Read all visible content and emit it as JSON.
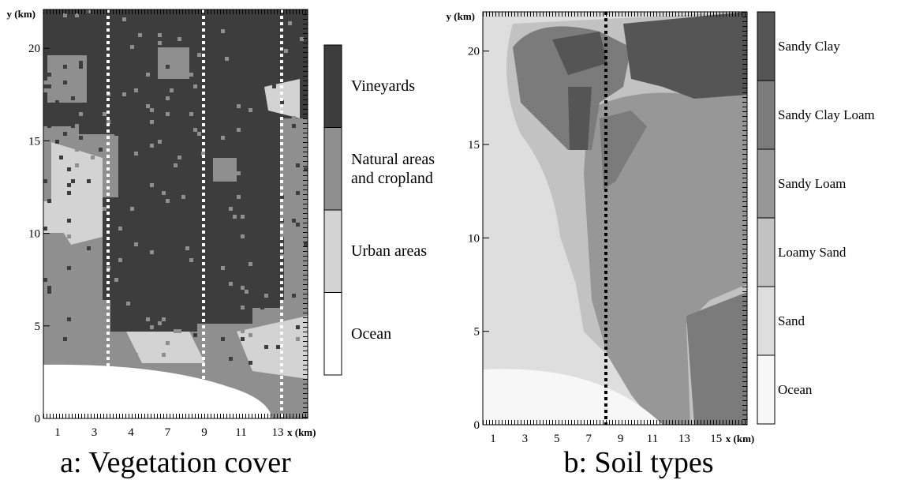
{
  "panels": [
    {
      "caption": "a: Vegetation cover",
      "y_axis_label": "y (km)",
      "x_axis_label": "x (km)",
      "ylim": [
        0,
        22.1
      ],
      "yticks": [
        0,
        5,
        10,
        15,
        20
      ],
      "xtick_labels": [
        "1",
        "3",
        "4",
        "7",
        "9",
        "11",
        "13"
      ],
      "transect_color": "#ffffff",
      "legend": [
        {
          "label": "Vineyards",
          "color": "#3d3d3d"
        },
        {
          "label": "Natural areas and cropland",
          "color": "#8f8f8f"
        },
        {
          "label": "Urban areas",
          "color": "#d3d3d3"
        },
        {
          "label": "Ocean",
          "color": "#ffffff"
        }
      ]
    },
    {
      "caption": "b: Soil types",
      "y_axis_label": "y (km)",
      "x_axis_label": "x (km)",
      "ylim": [
        0,
        22.1
      ],
      "yticks": [
        0,
        5,
        10,
        15,
        20
      ],
      "xtick_labels": [
        "1",
        "3",
        "5",
        "7",
        "9",
        "11",
        "13",
        "15"
      ],
      "transect_color": "#000000",
      "legend": [
        {
          "label": "Sandy Clay",
          "color": "#555555"
        },
        {
          "label": "Sandy Clay Loam",
          "color": "#7b7b7b"
        },
        {
          "label": "Sandy Loam",
          "color": "#979797"
        },
        {
          "label": "Loamy Sand",
          "color": "#c2c2c2"
        },
        {
          "label": "Sand",
          "color": "#dedede"
        },
        {
          "label": "Ocean",
          "color": "#f7f7f7"
        }
      ]
    }
  ]
}
